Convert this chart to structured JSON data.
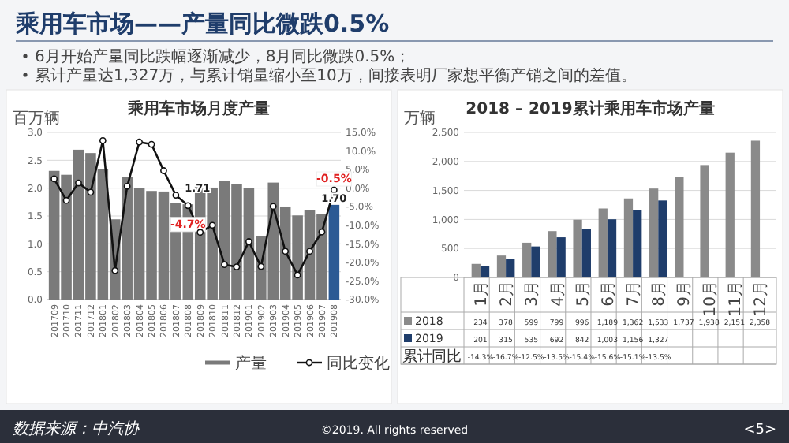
{
  "chart_data": [
    {
      "type": "other",
      "title": "乘用车市场——产量同比微跌0.5%",
      "annotations": [
        "6月开始产量同比跌幅逐渐减少，8月同比微跌0.5%；",
        "累计产量达1,327万，与累计销量缩小至10万，间接表明厂家想平衡产销之间的差值。",
        "数据来源：中汽协",
        "©2019. All rights reserved",
        "<5>"
      ]
    },
    {
      "type": "bar",
      "title": "乘用车市场月度产量",
      "ylabel": "百万辆",
      "categories": [
        "201709",
        "201710",
        "201711",
        "201712",
        "201801",
        "201802",
        "201803",
        "201804",
        "201805",
        "201806",
        "201807",
        "201808",
        "201809",
        "201810",
        "201811",
        "201812",
        "201901",
        "201902",
        "201903",
        "201904",
        "201905",
        "201906",
        "201907",
        "201908"
      ],
      "ylim": [
        0,
        3
      ],
      "yticks": [
        {
          "value": 0,
          "label": "0.0"
        },
        {
          "value": 0.5,
          "label": "0.5"
        },
        {
          "value": 1,
          "label": "1.0"
        },
        {
          "value": 1.5,
          "label": "1.5"
        },
        {
          "value": 2,
          "label": "2.0"
        },
        {
          "value": 2.5,
          "label": "2.5"
        },
        {
          "value": 3,
          "label": "3.0"
        }
      ],
      "y2lim": [
        -30,
        15
      ],
      "y2ticks": [
        {
          "value": -30,
          "label": "-30.0%"
        },
        {
          "value": -25,
          "label": "-25.0%"
        },
        {
          "value": -20,
          "label": "-20.0%"
        },
        {
          "value": -15,
          "label": "-15.0%"
        },
        {
          "value": -10,
          "label": "-10.0%"
        },
        {
          "value": -5,
          "label": "-5.0%"
        },
        {
          "value": 0,
          "label": "0.0%"
        },
        {
          "value": 5,
          "label": "5.0%"
        },
        {
          "value": 10,
          "label": "10.0%"
        },
        {
          "value": 15,
          "label": "15.0%"
        }
      ],
      "grid": "y",
      "legend": "bottom right",
      "marker": "circle",
      "series": [
        {
          "name": "产量",
          "type": "bar",
          "colors": [
            "#7a7a7a",
            "#7a7a7a",
            "#7a7a7a",
            "#7a7a7a",
            "#7a7a7a",
            "#7a7a7a",
            "#7a7a7a",
            "#7a7a7a",
            "#7a7a7a",
            "#7a7a7a",
            "#7a7a7a",
            "#7a7a7a",
            "#7a7a7a",
            "#7a7a7a",
            "#7a7a7a",
            "#7a7a7a",
            "#7a7a7a",
            "#7a7a7a",
            "#7a7a7a",
            "#7a7a7a",
            "#7a7a7a",
            "#7a7a7a",
            "#7a7a7a",
            "#2c5a94"
          ],
          "values": [
            2.31,
            2.24,
            2.69,
            2.63,
            2.34,
            1.44,
            2.2,
            2.0,
            1.95,
            1.94,
            1.73,
            1.71,
            2.03,
            2.01,
            2.13,
            2.07,
            2.0,
            1.14,
            2.1,
            1.67,
            1.51,
            1.61,
            1.53,
            1.7
          ],
          "value_labels": [
            null,
            null,
            null,
            null,
            null,
            null,
            null,
            null,
            null,
            null,
            null,
            "1.71",
            null,
            null,
            null,
            null,
            null,
            null,
            null,
            null,
            null,
            null,
            null,
            "1.70"
          ]
        },
        {
          "name": "同比变化",
          "type": "line",
          "axis": "y2",
          "color": "#111111",
          "values": [
            2.5,
            -3.3,
            1.4,
            -1.1,
            12.8,
            -22.2,
            0.5,
            12.4,
            11.8,
            4.7,
            -1.9,
            -4.7,
            -11.9,
            -10,
            -20.6,
            -21.2,
            -14.4,
            -21.1,
            -4.9,
            -17,
            -23.4,
            -17,
            -11.8,
            -0.5
          ],
          "value_labels": [
            null,
            null,
            null,
            null,
            null,
            null,
            null,
            null,
            null,
            null,
            null,
            "-4.7%",
            null,
            null,
            null,
            null,
            null,
            null,
            null,
            null,
            null,
            null,
            null,
            "-0.5%"
          ]
        }
      ]
    },
    {
      "type": "bar",
      "title": "2018 – 2019累计乘用车市场产量",
      "ylabel": "万辆",
      "categories": [
        "1月",
        "2月",
        "3月",
        "4月",
        "5月",
        "6月",
        "7月",
        "8月",
        "9月",
        "10月",
        "11月",
        "12月"
      ],
      "ylim": [
        0,
        2500
      ],
      "yticks": [
        0,
        500,
        {
          "value": 1000,
          "label": "1,000"
        },
        {
          "value": 1500,
          "label": "1,500"
        },
        {
          "value": 2000,
          "label": "2,000"
        },
        {
          "value": 2500,
          "label": "2,500"
        }
      ],
      "grid": "y",
      "legend": "bottom",
      "series": [
        {
          "name": "2018",
          "color": "#8a8a8a",
          "values": [
            234,
            378,
            599,
            799,
            996,
            1189,
            1362,
            1533,
            1737,
            1938,
            2151,
            2358
          ],
          "value_labels": [
            "234",
            "378",
            "599",
            "799",
            "996",
            "1,189",
            "1,362",
            "1,533",
            "1,737",
            "1,938",
            "2,151",
            "2,358"
          ]
        },
        {
          "name": "2019",
          "color": "#1f3d6b",
          "values": [
            201,
            315,
            535,
            692,
            842,
            1003,
            1156,
            1327,
            null,
            null,
            null,
            null
          ],
          "value_labels": [
            "201",
            "315",
            "535",
            "692",
            "842",
            "1,003",
            "1,156",
            "1,327",
            null,
            null,
            null,
            null
          ]
        }
      ],
      "annotations": [
        "累计同比",
        "-14.3%",
        "-16.7%",
        "-12.5%",
        "-13.5%",
        "-15.4%",
        "-15.6%",
        "-15.1%",
        "-13.5%"
      ]
    }
  ]
}
